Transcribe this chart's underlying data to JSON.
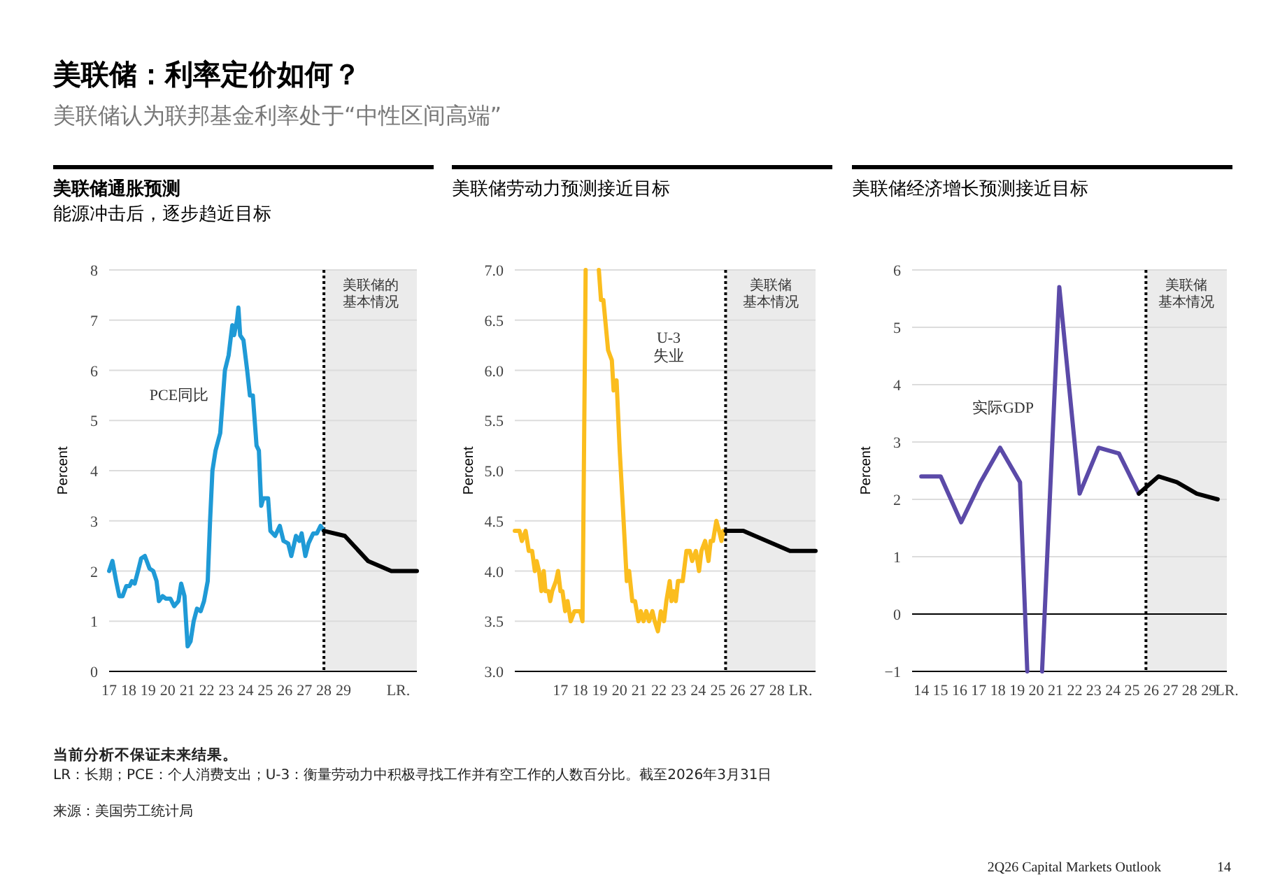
{
  "chart_data": [
    {
      "type": "other",
      "title": "美联储：利率定价如何？",
      "subtitle": "美联储认为联邦基金利率处于“中性区间高端”",
      "annotations": [
        "当前分析不保证未来结果。",
        "LR：长期；PCE：个人消费支出；U-3：衡量劳动力中积极寻找工作并有空工作的人数百分比。截至2026年3月31日",
        "来源：美国劳工统计局",
        "2Q26 Capital Markets Outlook",
        "14"
      ]
    },
    {
      "type": "line",
      "title": "美联储通胀预测",
      "subtitle": "能源冲击后，逐步趋近目标",
      "ylabel": "Percent",
      "xlim": [
        2017,
        2032.76
      ],
      "ylim": [
        0,
        8
      ],
      "yticks": [
        0,
        1,
        2,
        3,
        4,
        5,
        6,
        7,
        8
      ],
      "xticks": [
        {
          "value": 2017,
          "label": "17"
        },
        {
          "value": 2018,
          "label": "18"
        },
        {
          "value": 2019,
          "label": "19"
        },
        {
          "value": 2020,
          "label": "20"
        },
        {
          "value": 2021,
          "label": "21"
        },
        {
          "value": 2022,
          "label": "22"
        },
        {
          "value": 2023,
          "label": "23"
        },
        {
          "value": 2024,
          "label": "24"
        },
        {
          "value": 2025,
          "label": "25"
        },
        {
          "value": 2026,
          "label": "26"
        },
        {
          "value": 2027,
          "label": "27"
        },
        {
          "value": 2028,
          "label": "28"
        },
        {
          "value": 2029,
          "label": "29"
        },
        {
          "value": 2031.81,
          "label": "LR."
        }
      ],
      "grid": "y",
      "line_style": "solid",
      "marker": "none",
      "bands": [
        {
          "axis": "x",
          "from": 2028,
          "to": 2032.76,
          "label": "美联储的基本情况",
          "color": "#ebebeb"
        }
      ],
      "ref_lines": [
        {
          "axis": "x",
          "value": 2028,
          "line_style": "dotted",
          "color": "#000000"
        }
      ],
      "annotations": [
        "PCE同比"
      ],
      "series": [
        {
          "color": "#1f9ad6",
          "x": [
            2017.0,
            2017.17,
            2017.36,
            2017.52,
            2017.69,
            2017.88,
            2018.05,
            2018.17,
            2018.31,
            2018.48,
            2018.64,
            2018.83,
            2019.07,
            2019.26,
            2019.43,
            2019.55,
            2019.74,
            2019.9,
            2020.14,
            2020.33,
            2020.55,
            2020.69,
            2020.86,
            2021.02,
            2021.17,
            2021.33,
            2021.5,
            2021.69,
            2021.86,
            2022.05,
            2022.17,
            2022.29,
            2022.45,
            2022.69,
            2022.93,
            2023.12,
            2023.31,
            2023.4,
            2023.55,
            2023.62,
            2023.71,
            2023.88,
            2024.07,
            2024.21,
            2024.36,
            2024.55,
            2024.67,
            2024.79,
            2024.9,
            2025.14,
            2025.26,
            2025.5,
            2025.74,
            2025.93,
            2026.17,
            2026.33,
            2026.57,
            2026.74,
            2026.86,
            2027.05,
            2027.21,
            2027.45,
            2027.64,
            2027.83,
            2028.0
          ],
          "values": [
            2.0,
            2.2,
            1.8,
            1.5,
            1.5,
            1.7,
            1.7,
            1.8,
            1.75,
            2.0,
            2.25,
            2.3,
            2.05,
            2.0,
            1.8,
            1.4,
            1.5,
            1.45,
            1.45,
            1.3,
            1.4,
            1.75,
            1.5,
            0.5,
            0.6,
            1.0,
            1.25,
            1.2,
            1.4,
            1.8,
            3.0,
            4.0,
            4.4,
            4.75,
            6.0,
            6.3,
            6.9,
            6.7,
            7.0,
            7.25,
            6.7,
            6.6,
            6.0,
            5.5,
            5.5,
            4.5,
            4.4,
            3.3,
            3.45,
            3.45,
            2.8,
            2.7,
            2.9,
            2.6,
            2.55,
            2.3,
            2.7,
            2.6,
            2.75,
            2.3,
            2.55,
            2.75,
            2.75,
            2.9,
            2.8
          ]
        },
        {
          "color": "#000000",
          "x": [
            2028,
            2029.07,
            2030.26,
            2031.45,
            2032.76
          ],
          "values": [
            2.8,
            2.7,
            2.2,
            2.0,
            2.0
          ]
        }
      ]
    },
    {
      "type": "line",
      "title": "美联储劳动力预测接近目标",
      "ylabel": "Percent",
      "xlim": [
        2014.68,
        2029.96
      ],
      "ylim": [
        3,
        7
      ],
      "yticks": [
        {
          "value": 3,
          "label": "3.0"
        },
        {
          "value": 3.5,
          "label": "3.5"
        },
        {
          "value": 4,
          "label": "4.0"
        },
        {
          "value": 4.5,
          "label": "4.5"
        },
        {
          "value": 5,
          "label": "5.0"
        },
        {
          "value": 5.5,
          "label": "5.5"
        },
        {
          "value": 6,
          "label": "6.0"
        },
        {
          "value": 6.5,
          "label": "6.5"
        },
        {
          "value": 7,
          "label": "7.0"
        }
      ],
      "xticks": [
        {
          "value": 2017,
          "label": "17"
        },
        {
          "value": 2018,
          "label": "18"
        },
        {
          "value": 2019,
          "label": "19"
        },
        {
          "value": 2020,
          "label": "20"
        },
        {
          "value": 2021,
          "label": "21"
        },
        {
          "value": 2022,
          "label": "22"
        },
        {
          "value": 2023,
          "label": "23"
        },
        {
          "value": 2024,
          "label": "24"
        },
        {
          "value": 2025,
          "label": "25"
        },
        {
          "value": 2026,
          "label": "26"
        },
        {
          "value": 2027,
          "label": "27"
        },
        {
          "value": 2028,
          "label": "28"
        },
        {
          "value": 2029.2,
          "label": "LR."
        }
      ],
      "grid": "y",
      "line_style": "solid",
      "marker": "none",
      "bands": [
        {
          "axis": "x",
          "from": 2025.39,
          "to": 2029.96,
          "label": "美联储基本情况",
          "color": "#ebebeb"
        }
      ],
      "ref_lines": [
        {
          "axis": "x",
          "value": 2025.39,
          "line_style": "dotted",
          "color": "#000000"
        }
      ],
      "annotations": [
        "U-3\n失业"
      ],
      "series": [
        {
          "color": "#fbbd1e",
          "x": [
            2014.68,
            2014.92,
            2015.04,
            2015.23,
            2015.39,
            2015.56,
            2015.7,
            2015.79,
            2015.91,
            2016.03,
            2016.15,
            2016.24,
            2016.39,
            2016.48,
            2016.58,
            2016.77,
            2016.88,
            2017.0,
            2017.1,
            2017.24,
            2017.36,
            2017.52,
            2017.71,
            2018.0,
            2018.12,
            2018.28,
            null,
            2018.95,
            2019.06,
            2019.18,
            2019.42,
            2019.61,
            2019.7,
            2019.85,
            2020.01,
            2020.18,
            2020.37,
            2020.49,
            2020.65,
            2020.79,
            2020.96,
            2021.08,
            2021.22,
            2021.36,
            2021.5,
            2021.67,
            2021.79,
            2021.95,
            2022.1,
            2022.26,
            2022.38,
            2022.55,
            2022.64,
            2022.74,
            2022.86,
            2022.97,
            2023.21,
            2023.4,
            2023.57,
            2023.69,
            2023.88,
            2024.04,
            2024.16,
            2024.35,
            2024.52,
            2024.63,
            2024.75,
            2024.92,
            2025.06,
            2025.18,
            2025.27,
            2025.39
          ],
          "values": [
            4.4,
            4.4,
            4.3,
            4.4,
            4.2,
            4.2,
            4.0,
            4.1,
            4.0,
            3.8,
            4.0,
            3.8,
            3.8,
            3.7,
            3.8,
            3.9,
            4.0,
            3.8,
            3.8,
            3.6,
            3.7,
            3.5,
            3.6,
            3.6,
            3.5,
            7.0,
            null,
            7.0,
            6.7,
            6.7,
            6.2,
            6.1,
            5.8,
            5.9,
            5.2,
            4.6,
            3.9,
            4.0,
            3.7,
            3.7,
            3.5,
            3.6,
            3.5,
            3.6,
            3.5,
            3.6,
            3.5,
            3.4,
            3.6,
            3.5,
            3.7,
            3.9,
            3.7,
            3.8,
            3.7,
            3.9,
            3.9,
            4.2,
            4.2,
            4.1,
            4.2,
            4.0,
            4.2,
            4.3,
            4.1,
            4.3,
            4.3,
            4.5,
            4.4,
            4.3,
            4.4,
            4.4
          ]
        },
        {
          "color": "#000000",
          "x": [
            2025.39,
            2026.29,
            2028.66,
            2029.96
          ],
          "values": [
            4.4,
            4.4,
            4.2,
            4.2
          ]
        }
      ]
    },
    {
      "type": "line",
      "title": "美联储经济增长预测接近目标",
      "ylabel": "Percent",
      "xlim": [
        2013.52,
        2029.94
      ],
      "ylim": [
        -1,
        6
      ],
      "yticks": [
        {
          "value": -1,
          "label": "−1"
        },
        0,
        1,
        2,
        3,
        4,
        5,
        6
      ],
      "xticks": [
        {
          "value": 2014,
          "label": "14"
        },
        {
          "value": 2015,
          "label": "15"
        },
        {
          "value": 2016,
          "label": "16"
        },
        {
          "value": 2017,
          "label": "17"
        },
        {
          "value": 2018,
          "label": "18"
        },
        {
          "value": 2019,
          "label": "19"
        },
        {
          "value": 2020,
          "label": "20"
        },
        {
          "value": 2021,
          "label": "21"
        },
        {
          "value": 2022,
          "label": "22"
        },
        {
          "value": 2023,
          "label": "23"
        },
        {
          "value": 2024,
          "label": "24"
        },
        {
          "value": 2025,
          "label": "25"
        },
        {
          "value": 2026,
          "label": "26"
        },
        {
          "value": 2027,
          "label": "27"
        },
        {
          "value": 2028,
          "label": "28"
        },
        {
          "value": 2029,
          "label": "29"
        },
        {
          "value": 2029.94,
          "label": "LR."
        }
      ],
      "grid": "y",
      "line_style": "solid",
      "marker": "none",
      "bands": [
        {
          "axis": "x",
          "from": 2025.72,
          "to": 2029.94,
          "label": "美联储基本情况",
          "color": "#ebebeb"
        }
      ],
      "ref_lines": [
        {
          "axis": "x",
          "value": 2025.72,
          "line_style": "dotted",
          "color": "#000000"
        },
        {
          "axis": "y",
          "value": 0,
          "line_style": "solid",
          "color": "#000000"
        }
      ],
      "annotations": [
        "实际GDP"
      ],
      "series": [
        {
          "color": "#5b4aa8",
          "x": [
            2014.0,
            2015.01,
            2016.08,
            2017.09,
            2018.11,
            2019.15,
            2019.53,
            null,
            2020.3,
            2021.2,
            2022.26,
            2023.25,
            2024.31,
            2025.35
          ],
          "values": [
            2.4,
            2.4,
            1.6,
            2.3,
            2.9,
            2.3,
            -1,
            null,
            -1,
            5.7,
            2.1,
            2.9,
            2.8,
            2.1
          ]
        },
        {
          "color": "#000000",
          "x": [
            2025.35,
            2026.37,
            2027.33,
            2028.37,
            2029.46
          ],
          "values": [
            2.1,
            2.4,
            2.3,
            2.1,
            2.0
          ]
        }
      ]
    }
  ]
}
